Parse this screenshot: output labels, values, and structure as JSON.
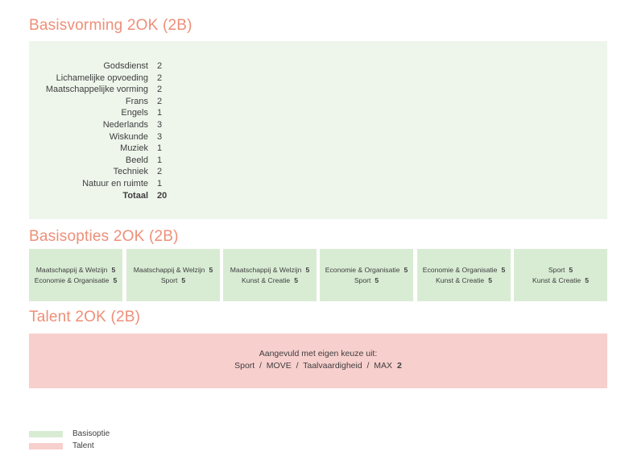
{
  "sections": {
    "basisvorming_title": "Basisvorming 2OK (2B)",
    "basisopties_title": "Basisopties 2OK (2B)",
    "talent_title": "Talent 2OK (2B)"
  },
  "basisvorming": {
    "subjects": [
      {
        "name": "Godsdienst",
        "hours": "2"
      },
      {
        "name": "Lichamelijke opvoeding",
        "hours": "2"
      },
      {
        "name": "Maatschappelijke vorming",
        "hours": "2"
      },
      {
        "name": "Frans",
        "hours": "2"
      },
      {
        "name": "Engels",
        "hours": "1"
      },
      {
        "name": "Nederlands",
        "hours": "3"
      },
      {
        "name": "Wiskunde",
        "hours": "3"
      },
      {
        "name": "Muziek",
        "hours": "1"
      },
      {
        "name": "Beeld",
        "hours": "1"
      },
      {
        "name": "Techniek",
        "hours": "2"
      },
      {
        "name": "Natuur en ruimte",
        "hours": "1"
      }
    ],
    "total_label": "Totaal",
    "total_hours": "20"
  },
  "basisopties": [
    {
      "a": "Maatschappij & Welzijn",
      "a_hours": "5",
      "b": "Economie & Organisatie",
      "b_hours": "5"
    },
    {
      "a": "Maatschappij & Welzijn",
      "a_hours": "5",
      "b": "Sport",
      "b_hours": "5"
    },
    {
      "a": "Maatschappij & Welzijn",
      "a_hours": "5",
      "b": "Kunst & Creatie",
      "b_hours": "5"
    },
    {
      "a": "Economie & Organisatie",
      "a_hours": "5",
      "b": "Sport",
      "b_hours": "5"
    },
    {
      "a": "Economie & Organisatie",
      "a_hours": "5",
      "b": "Kunst & Creatie",
      "b_hours": "5"
    },
    {
      "a": "Sport",
      "a_hours": "5",
      "b": "Kunst & Creatie",
      "b_hours": "5"
    }
  ],
  "talent": {
    "intro": "Aangevuld met eigen keuze uit:",
    "options": "Sport  /  MOVE  /  Taalvaardigheid  /  MAX",
    "hours": "2"
  },
  "legend": {
    "basisoptie": "Basisoptie",
    "talent": "Talent"
  },
  "colors": {
    "heading": "#ee8f78",
    "basisvorming_bg": "#eef6ec",
    "basisoptie": "#d8ecd4",
    "talent": "#f7cfcd"
  }
}
